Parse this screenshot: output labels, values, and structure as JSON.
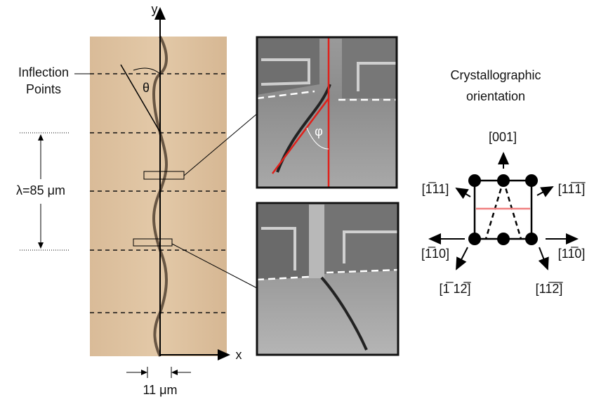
{
  "figure": {
    "optical": {
      "y_axis": "y",
      "x_axis": "x",
      "inflection_label": [
        "Inflection",
        "Points"
      ],
      "angle": "θ",
      "wavelength": "λ=85 μm",
      "width": "11 μm"
    },
    "micrograph_top": {
      "angle": "φ"
    },
    "orientation": {
      "title": [
        "Crystallographic",
        "orientation"
      ],
      "directions": [
        "[001]",
        "[1̅11]",
        "[11̅1̅]",
        "[1̅10]",
        "[11̅0]",
        "[1̅ 12̅]",
        "[11̅2̅]"
      ]
    }
  }
}
